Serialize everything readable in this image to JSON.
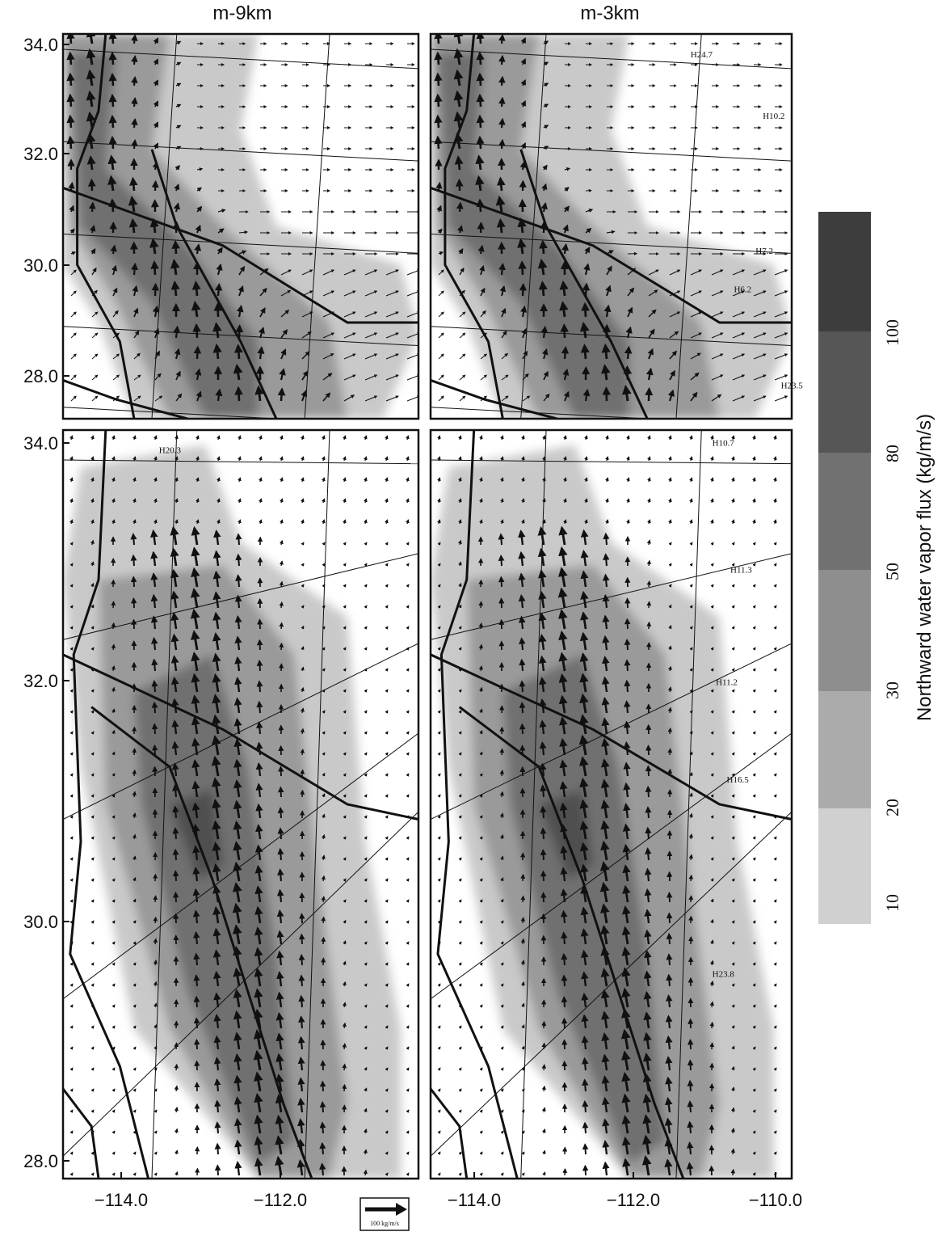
{
  "columns": [
    "m-9km",
    "m-3km"
  ],
  "y_ticks": {
    "top": [
      "34.0",
      "32.0",
      "30.0",
      "28.0"
    ],
    "bottom": [
      "34.0",
      "32.0",
      "30.0",
      "28.0"
    ]
  },
  "x_ticks": {
    "left": [
      "−114.0",
      "−112.0"
    ],
    "right": [
      "−114.0",
      "−112.0",
      "−110.0"
    ]
  },
  "colorbar": {
    "label": "Northward water vapor flux (kg/m/s)",
    "ticks": [
      "10",
      "20",
      "30",
      "50",
      "80",
      "100"
    ]
  },
  "scale_arrow": "100 kg/m/s",
  "highs": {
    "top_right": [
      "H24.7",
      "H10.2",
      "H7.2",
      "H6.2",
      "H23.5"
    ],
    "bottom_left": [
      "H20.3"
    ],
    "bottom_right": [
      "H10.7",
      "H11.3",
      "H11.2",
      "H16.5",
      "H23.8"
    ]
  }
}
